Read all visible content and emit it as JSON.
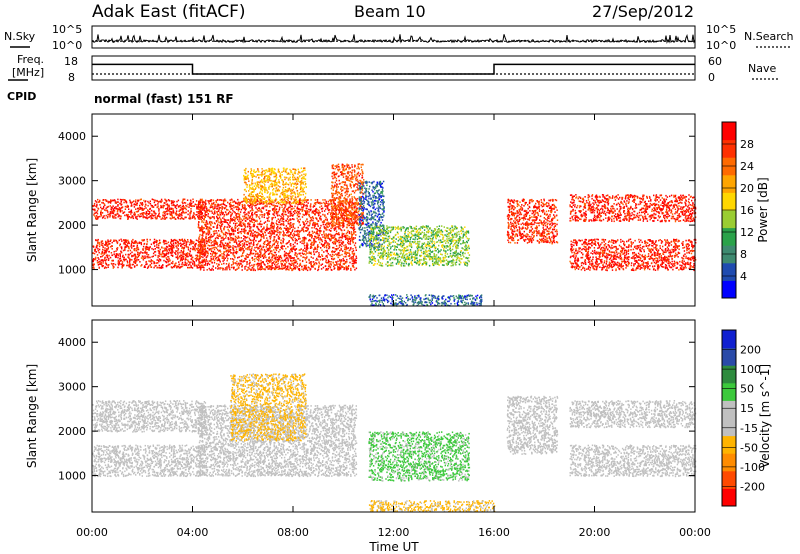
{
  "header": {
    "title": "Adak East (fitACF)",
    "beam": "Beam 10",
    "date": "27/Sep/2012"
  },
  "strip_labels": {
    "nsky": "N.Sky",
    "nsearch": "N.Search",
    "freq_line1": "Freq.",
    "freq_line2": "[MHz]",
    "nave": "Nave",
    "cpid": "CPID",
    "cpid_value": "normal (fast) 151 RF",
    "noise_ticks_left": [
      "10^5",
      "10^0"
    ],
    "noise_ticks_right": [
      "10^5",
      "10^0"
    ],
    "freq_ticks_left": [
      "18",
      "8"
    ],
    "freq_ticks_right": [
      "60",
      "0"
    ]
  },
  "colors": {
    "scale_power": [
      "#0000ff",
      "#1f4bb0",
      "#3e8a70",
      "#2aa24a",
      "#9acd32",
      "#ffd700",
      "#ffa500",
      "#ff6a00",
      "#ff3000",
      "#ff0000"
    ],
    "scale_velocity": [
      "#ff0000",
      "#ff4a00",
      "#ff8c00",
      "#ffb400",
      "#c0c0c0",
      "#c0c0c0",
      "#3cc93c",
      "#2e8b3e",
      "#2a4aa8",
      "#1020d0"
    ]
  },
  "chart_data": [
    {
      "type": "heatmap",
      "name": "power",
      "title": "",
      "xlabel": "Time UT",
      "ylabel": "Slant Range [km]",
      "xlim": [
        0,
        24
      ],
      "ylim": [
        180,
        4500
      ],
      "x_ticks": [
        "00:00",
        "04:00",
        "08:00",
        "12:00",
        "16:00",
        "20:00",
        "00:00"
      ],
      "y_ticks": [
        "1000",
        "2000",
        "3000",
        "4000"
      ],
      "colorbar_label": "Power [dB]",
      "colorbar_ticks": [
        "4",
        "8",
        "12",
        "16",
        "20",
        "24",
        "28"
      ],
      "colorbar_range": [
        0,
        32
      ],
      "scatter_regions": [
        {
          "t": [
            0.0,
            4.5
          ],
          "r": [
            1050,
            1700
          ],
          "value": 29
        },
        {
          "t": [
            0.0,
            4.5
          ],
          "r": [
            2150,
            2600
          ],
          "value": 29
        },
        {
          "t": [
            4.2,
            10.5
          ],
          "r": [
            1000,
            2600
          ],
          "value": 28
        },
        {
          "t": [
            6.0,
            8.5
          ],
          "r": [
            2500,
            3300
          ],
          "value": 20
        },
        {
          "t": [
            9.5,
            10.8
          ],
          "r": [
            2000,
            3400
          ],
          "value": 26
        },
        {
          "t": [
            10.6,
            11.6
          ],
          "r": [
            1500,
            3000
          ],
          "value": 6
        },
        {
          "t": [
            11.0,
            15.0
          ],
          "r": [
            1100,
            2000
          ],
          "value": 14
        },
        {
          "t": [
            11.0,
            15.5
          ],
          "r": [
            200,
            450
          ],
          "value": 6
        },
        {
          "t": [
            16.5,
            18.5
          ],
          "r": [
            1600,
            2600
          ],
          "value": 28
        },
        {
          "t": [
            19.0,
            24.0
          ],
          "r": [
            1000,
            1700
          ],
          "value": 29
        },
        {
          "t": [
            19.0,
            24.0
          ],
          "r": [
            2100,
            2700
          ],
          "value": 29
        }
      ]
    },
    {
      "type": "heatmap",
      "name": "velocity",
      "title": "",
      "xlabel": "Time UT",
      "ylabel": "Slant Range [km]",
      "xlim": [
        0,
        24
      ],
      "ylim": [
        180,
        4500
      ],
      "x_ticks": [
        "00:00",
        "04:00",
        "08:00",
        "12:00",
        "16:00",
        "20:00",
        "00:00"
      ],
      "y_ticks": [
        "1000",
        "2000",
        "3000",
        "4000"
      ],
      "colorbar_label": "Velocity [m s^-1]",
      "colorbar_ticks": [
        "-200",
        "-100",
        "-50",
        "-15",
        "15",
        "50",
        "100",
        "200"
      ],
      "scatter_regions": [
        {
          "t": [
            0.0,
            4.5
          ],
          "r": [
            1000,
            1700
          ],
          "value": 0
        },
        {
          "t": [
            0.0,
            4.5
          ],
          "r": [
            2000,
            2700
          ],
          "value": 0
        },
        {
          "t": [
            4.2,
            10.5
          ],
          "r": [
            1000,
            2600
          ],
          "value": 0
        },
        {
          "t": [
            5.5,
            8.5
          ],
          "r": [
            1800,
            3300
          ],
          "value": -60
        },
        {
          "t": [
            11.0,
            15.0
          ],
          "r": [
            900,
            2000
          ],
          "value": 60
        },
        {
          "t": [
            11.0,
            16.0
          ],
          "r": [
            200,
            450
          ],
          "value": -60
        },
        {
          "t": [
            16.5,
            18.5
          ],
          "r": [
            1500,
            2800
          ],
          "value": 0
        },
        {
          "t": [
            19.0,
            24.0
          ],
          "r": [
            1000,
            1700
          ],
          "value": 0
        },
        {
          "t": [
            19.0,
            24.0
          ],
          "r": [
            2100,
            2700
          ],
          "value": 0
        }
      ]
    },
    {
      "type": "line",
      "name": "transmit-frequency",
      "ylim": [
        8,
        18
      ],
      "segments": [
        {
          "x": [
            0.0,
            4.0
          ],
          "y": 14.5
        },
        {
          "x": [
            4.0,
            16.0
          ],
          "y": 10.5
        },
        {
          "x": [
            16.0,
            24.0
          ],
          "y": 14.5
        }
      ]
    },
    {
      "type": "line",
      "name": "sky-noise",
      "ylim": [
        0,
        5
      ],
      "level": 1.3
    }
  ]
}
